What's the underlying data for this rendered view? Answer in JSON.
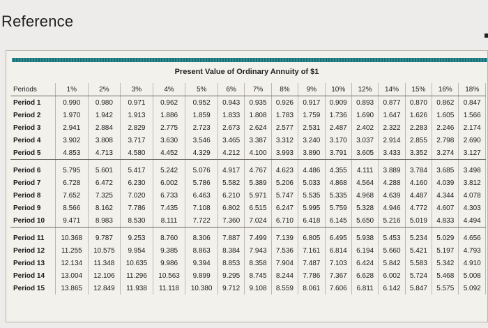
{
  "page": {
    "title": "Reference"
  },
  "table": {
    "title": "Present Value of Ordinary Annuity of $1",
    "columns": [
      "Periods",
      "1%",
      "2%",
      "3%",
      "4%",
      "5%",
      "6%",
      "7%",
      "8%",
      "9%",
      "10%",
      "12%",
      "14%",
      "15%",
      "16%",
      "18%"
    ],
    "rows": [
      {
        "label": "Period 1",
        "values": [
          "0.990",
          "0.980",
          "0.971",
          "0.962",
          "0.952",
          "0.943",
          "0.935",
          "0.926",
          "0.917",
          "0.909",
          "0.893",
          "0.877",
          "0.870",
          "0.862",
          "0.847"
        ]
      },
      {
        "label": "Period 2",
        "values": [
          "1.970",
          "1.942",
          "1.913",
          "1.886",
          "1.859",
          "1.833",
          "1.808",
          "1.783",
          "1.759",
          "1.736",
          "1.690",
          "1.647",
          "1.626",
          "1.605",
          "1.566"
        ]
      },
      {
        "label": "Period 3",
        "values": [
          "2.941",
          "2.884",
          "2.829",
          "2.775",
          "2.723",
          "2.673",
          "2.624",
          "2.577",
          "2.531",
          "2.487",
          "2.402",
          "2.322",
          "2.283",
          "2.246",
          "2.174"
        ]
      },
      {
        "label": "Period 4",
        "values": [
          "3.902",
          "3.808",
          "3.717",
          "3.630",
          "3.546",
          "3.465",
          "3.387",
          "3.312",
          "3.240",
          "3.170",
          "3.037",
          "2.914",
          "2.855",
          "2.798",
          "2.690"
        ]
      },
      {
        "label": "Period 5",
        "values": [
          "4.853",
          "4.713",
          "4.580",
          "4.452",
          "4.329",
          "4.212",
          "4.100",
          "3.993",
          "3.890",
          "3.791",
          "3.605",
          "3.433",
          "3.352",
          "3.274",
          "3.127"
        ]
      },
      {
        "label": "Period 6",
        "values": [
          "5.795",
          "5.601",
          "5.417",
          "5.242",
          "5.076",
          "4.917",
          "4.767",
          "4.623",
          "4.486",
          "4.355",
          "4.111",
          "3.889",
          "3.784",
          "3.685",
          "3.498"
        ]
      },
      {
        "label": "Period 7",
        "values": [
          "6.728",
          "6.472",
          "6.230",
          "6.002",
          "5.786",
          "5.582",
          "5.389",
          "5.206",
          "5.033",
          "4.868",
          "4.564",
          "4.288",
          "4.160",
          "4.039",
          "3.812"
        ]
      },
      {
        "label": "Period 8",
        "values": [
          "7.652",
          "7.325",
          "7.020",
          "6.733",
          "6.463",
          "6.210",
          "5.971",
          "5.747",
          "5.535",
          "5.335",
          "4.968",
          "4.639",
          "4.487",
          "4.344",
          "4.078"
        ]
      },
      {
        "label": "Period 9",
        "values": [
          "8.566",
          "8.162",
          "7.786",
          "7.435",
          "7.108",
          "6.802",
          "6.515",
          "6.247",
          "5.995",
          "5.759",
          "5.328",
          "4.946",
          "4.772",
          "4.607",
          "4.303"
        ]
      },
      {
        "label": "Period 10",
        "values": [
          "9.471",
          "8.983",
          "8.530",
          "8.111",
          "7.722",
          "7.360",
          "7.024",
          "6.710",
          "6.418",
          "6.145",
          "5.650",
          "5.216",
          "5.019",
          "4.833",
          "4.494"
        ]
      },
      {
        "label": "Period 11",
        "values": [
          "10.368",
          "9.787",
          "9.253",
          "8.760",
          "8.306",
          "7.887",
          "7.499",
          "7.139",
          "6.805",
          "6.495",
          "5.938",
          "5.453",
          "5.234",
          "5.029",
          "4.656"
        ]
      },
      {
        "label": "Period 12",
        "values": [
          "11.255",
          "10.575",
          "9.954",
          "9.385",
          "8.863",
          "8.384",
          "7.943",
          "7.536",
          "7.161",
          "6.814",
          "6.194",
          "5.660",
          "5.421",
          "5.197",
          "4.793"
        ]
      },
      {
        "label": "Period 13",
        "values": [
          "12.134",
          "11.348",
          "10.635",
          "9.986",
          "9.394",
          "8.853",
          "8.358",
          "7.904",
          "7.487",
          "7.103",
          "6.424",
          "5.842",
          "5.583",
          "5.342",
          "4.910"
        ]
      },
      {
        "label": "Period 14",
        "values": [
          "13.004",
          "12.106",
          "11.296",
          "10.563",
          "9.899",
          "9.295",
          "8.745",
          "8.244",
          "7.786",
          "7.367",
          "6.628",
          "6.002",
          "5.724",
          "5.468",
          "5.008"
        ]
      },
      {
        "label": "Period 15",
        "values": [
          "13.865",
          "12.849",
          "11.938",
          "11.118",
          "10.380",
          "9.712",
          "9.108",
          "8.559",
          "8.061",
          "7.606",
          "6.811",
          "6.142",
          "5.847",
          "5.575",
          "5.092"
        ]
      }
    ]
  },
  "colors": {
    "accent_band": "#2f8f95"
  }
}
